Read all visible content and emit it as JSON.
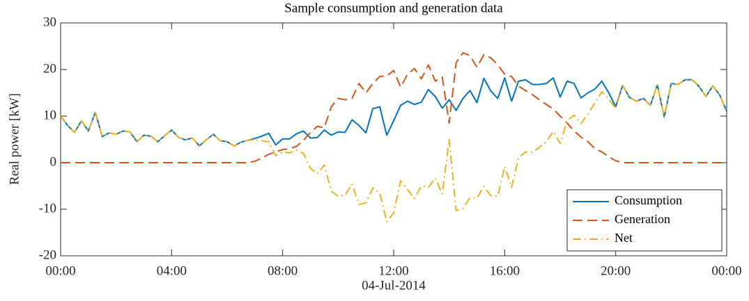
{
  "chart_data": {
    "type": "line",
    "title": "Sample consumption and generation data",
    "ylabel": "Real power [kW]",
    "xlabel": "04-Jul-2014",
    "x": [
      0,
      0.25,
      0.5,
      0.75,
      1,
      1.25,
      1.5,
      1.75,
      2,
      2.25,
      2.5,
      2.75,
      3,
      3.25,
      3.5,
      3.75,
      4,
      4.25,
      4.5,
      4.75,
      5,
      5.25,
      5.5,
      5.75,
      6,
      6.25,
      6.5,
      6.75,
      7,
      7.25,
      7.5,
      7.75,
      8,
      8.25,
      8.5,
      8.75,
      9,
      9.25,
      9.5,
      9.75,
      10,
      10.25,
      10.5,
      10.75,
      11,
      11.25,
      11.5,
      11.75,
      12,
      12.25,
      12.5,
      12.75,
      13,
      13.25,
      13.5,
      13.75,
      14,
      14.25,
      14.5,
      14.75,
      15,
      15.25,
      15.5,
      15.75,
      16,
      16.25,
      16.5,
      16.75,
      17,
      17.25,
      17.5,
      17.75,
      18,
      18.25,
      18.5,
      18.75,
      19,
      19.25,
      19.5,
      19.75,
      20,
      20.25,
      20.5,
      20.75,
      21,
      21.25,
      21.5,
      21.75,
      22,
      22.25,
      22.5,
      22.75,
      23,
      23.25,
      23.5,
      23.75,
      24
    ],
    "series": [
      {
        "name": "Consumption",
        "color": "#0072BD",
        "dash": "solid",
        "values": [
          10,
          8,
          6.5,
          9,
          6.8,
          10.8,
          5.6,
          6.4,
          6.1,
          6.8,
          6.6,
          4.5,
          5.9,
          5.7,
          4.5,
          5.8,
          7,
          5.4,
          4.9,
          5.3,
          3.6,
          4.9,
          6.1,
          4.7,
          4.5,
          3.6,
          4.4,
          4.8,
          5.2,
          5.7,
          6.3,
          3.8,
          5.1,
          5.1,
          6.2,
          6.8,
          5.3,
          5.4,
          7,
          5.9,
          6.6,
          6.5,
          9.2,
          8,
          6.4,
          11.6,
          12,
          5.9,
          9,
          12.3,
          13.2,
          12.5,
          13,
          15.7,
          14.2,
          11.7,
          13.5,
          11.2,
          13.8,
          15.5,
          12.9,
          18.1,
          15.4,
          13.8,
          18.2,
          13.2,
          17.5,
          17.8,
          16.8,
          16.8,
          17,
          18.2,
          14.1,
          17.5,
          17,
          13.9,
          15,
          15.8,
          17.5,
          15,
          12,
          16.6,
          14,
          13.2,
          13.8,
          12.3,
          16.7,
          9.8,
          17,
          16.8,
          17.8,
          17.8,
          16.4,
          14.2,
          16.5,
          14.5,
          11
        ]
      },
      {
        "name": "Generation",
        "color": "#D95319",
        "dash": "dashed",
        "values": [
          0,
          0,
          0,
          0,
          0,
          0,
          0,
          0,
          0,
          0,
          0,
          0,
          0,
          0,
          0,
          0,
          0,
          0,
          0,
          0,
          0,
          0,
          0,
          0,
          0,
          0,
          0,
          0,
          0.3,
          1,
          1.8,
          2.3,
          2.8,
          3,
          3.5,
          4.8,
          6.5,
          7.8,
          7.5,
          12,
          13.8,
          13.5,
          13.8,
          17,
          15,
          17,
          18.5,
          18.6,
          19.8,
          16.2,
          19,
          20.2,
          18,
          21,
          17.5,
          18.4,
          8.5,
          21.5,
          23.6,
          23,
          20.5,
          23.2,
          22.5,
          21,
          19,
          18.5,
          16.4,
          15.5,
          14.6,
          13.5,
          12.5,
          11.5,
          10,
          8.5,
          6.8,
          5.5,
          4.5,
          3,
          2.3,
          1.3,
          0.4,
          0,
          0,
          0,
          0,
          0,
          0,
          0,
          0,
          0,
          0,
          0,
          0,
          0,
          0,
          0,
          0
        ]
      },
      {
        "name": "Net",
        "color": "#EDB120",
        "dash": "dashdot",
        "values": [
          10,
          8,
          6.5,
          9,
          6.8,
          10.8,
          5.6,
          6.4,
          6.1,
          6.8,
          6.6,
          4.5,
          5.9,
          5.7,
          4.5,
          5.8,
          7,
          5.4,
          4.9,
          5.3,
          3.6,
          4.9,
          6.1,
          4.7,
          4.5,
          3.6,
          4.4,
          4.8,
          4.9,
          4.7,
          4.5,
          1.5,
          2.3,
          2.1,
          2.7,
          2,
          -1.2,
          -2.4,
          -0.5,
          -6.1,
          -7.2,
          -7,
          -4.6,
          -9,
          -8.6,
          -5.4,
          -6.5,
          -12.7,
          -10.8,
          -3.9,
          -5.8,
          -7.7,
          -5,
          -5.3,
          -3.3,
          -6.7,
          5,
          -10.3,
          -9.8,
          -7.5,
          -7.6,
          -5.1,
          -7.1,
          -7.2,
          -0.8,
          -5.3,
          1.1,
          2.3,
          2.2,
          3.3,
          4.5,
          6.7,
          4.1,
          9,
          10.2,
          8.4,
          10.5,
          12.8,
          15.2,
          13.7,
          11.6,
          16.6,
          14,
          13.2,
          13.8,
          12.3,
          16.7,
          9.8,
          17,
          16.8,
          17.8,
          17.8,
          16.4,
          14.2,
          16.5,
          14.5,
          11
        ]
      }
    ],
    "xlim": [
      0,
      24
    ],
    "xticks": [
      {
        "value": 0,
        "label": "00:00"
      },
      {
        "value": 4,
        "label": "04:00"
      },
      {
        "value": 8,
        "label": "08:00"
      },
      {
        "value": 12,
        "label": "12:00"
      },
      {
        "value": 16,
        "label": "16:00"
      },
      {
        "value": 20,
        "label": "20:00"
      },
      {
        "value": 24,
        "label": "00:00"
      }
    ],
    "ylim": [
      -20,
      30
    ],
    "yticks": [
      -20,
      -10,
      0,
      10,
      20,
      30
    ],
    "grid": false,
    "legend": "southeast"
  }
}
